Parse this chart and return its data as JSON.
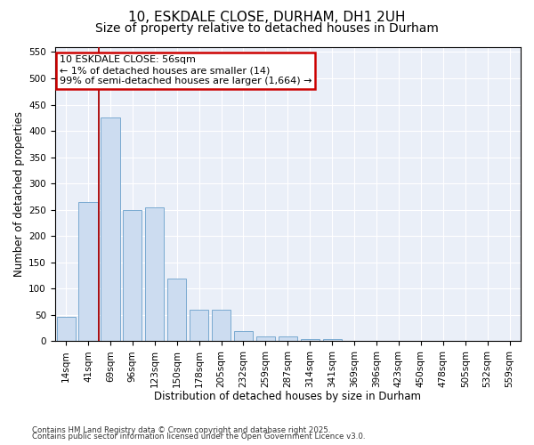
{
  "title1": "10, ESKDALE CLOSE, DURHAM, DH1 2UH",
  "title2": "Size of property relative to detached houses in Durham",
  "xlabel": "Distribution of detached houses by size in Durham",
  "ylabel": "Number of detached properties",
  "bins": [
    "14sqm",
    "41sqm",
    "69sqm",
    "96sqm",
    "123sqm",
    "150sqm",
    "178sqm",
    "205sqm",
    "232sqm",
    "259sqm",
    "287sqm",
    "314sqm",
    "341sqm",
    "369sqm",
    "396sqm",
    "423sqm",
    "450sqm",
    "478sqm",
    "505sqm",
    "532sqm",
    "559sqm"
  ],
  "values": [
    47,
    265,
    425,
    250,
    255,
    120,
    60,
    60,
    20,
    10,
    10,
    5,
    5,
    0,
    0,
    0,
    0,
    0,
    0,
    0,
    0
  ],
  "bar_color": "#ccdcf0",
  "bar_edge_color": "#7aaad0",
  "vline_x": 1.5,
  "vline_color": "#aa0000",
  "annotation_box_color": "#cc0000",
  "annotation_text": "10 ESKDALE CLOSE: 56sqm\n← 1% of detached houses are smaller (14)\n99% of semi-detached houses are larger (1,664) →",
  "ylim": [
    0,
    560
  ],
  "yticks": [
    0,
    50,
    100,
    150,
    200,
    250,
    300,
    350,
    400,
    450,
    500,
    550
  ],
  "bg_color": "#eaeff8",
  "footer1": "Contains HM Land Registry data © Crown copyright and database right 2025.",
  "footer2": "Contains public sector information licensed under the Open Government Licence v3.0.",
  "title_fontsize": 11,
  "subtitle_fontsize": 10,
  "axis_label_fontsize": 8.5,
  "tick_fontsize": 7.5,
  "annotation_fontsize": 8
}
